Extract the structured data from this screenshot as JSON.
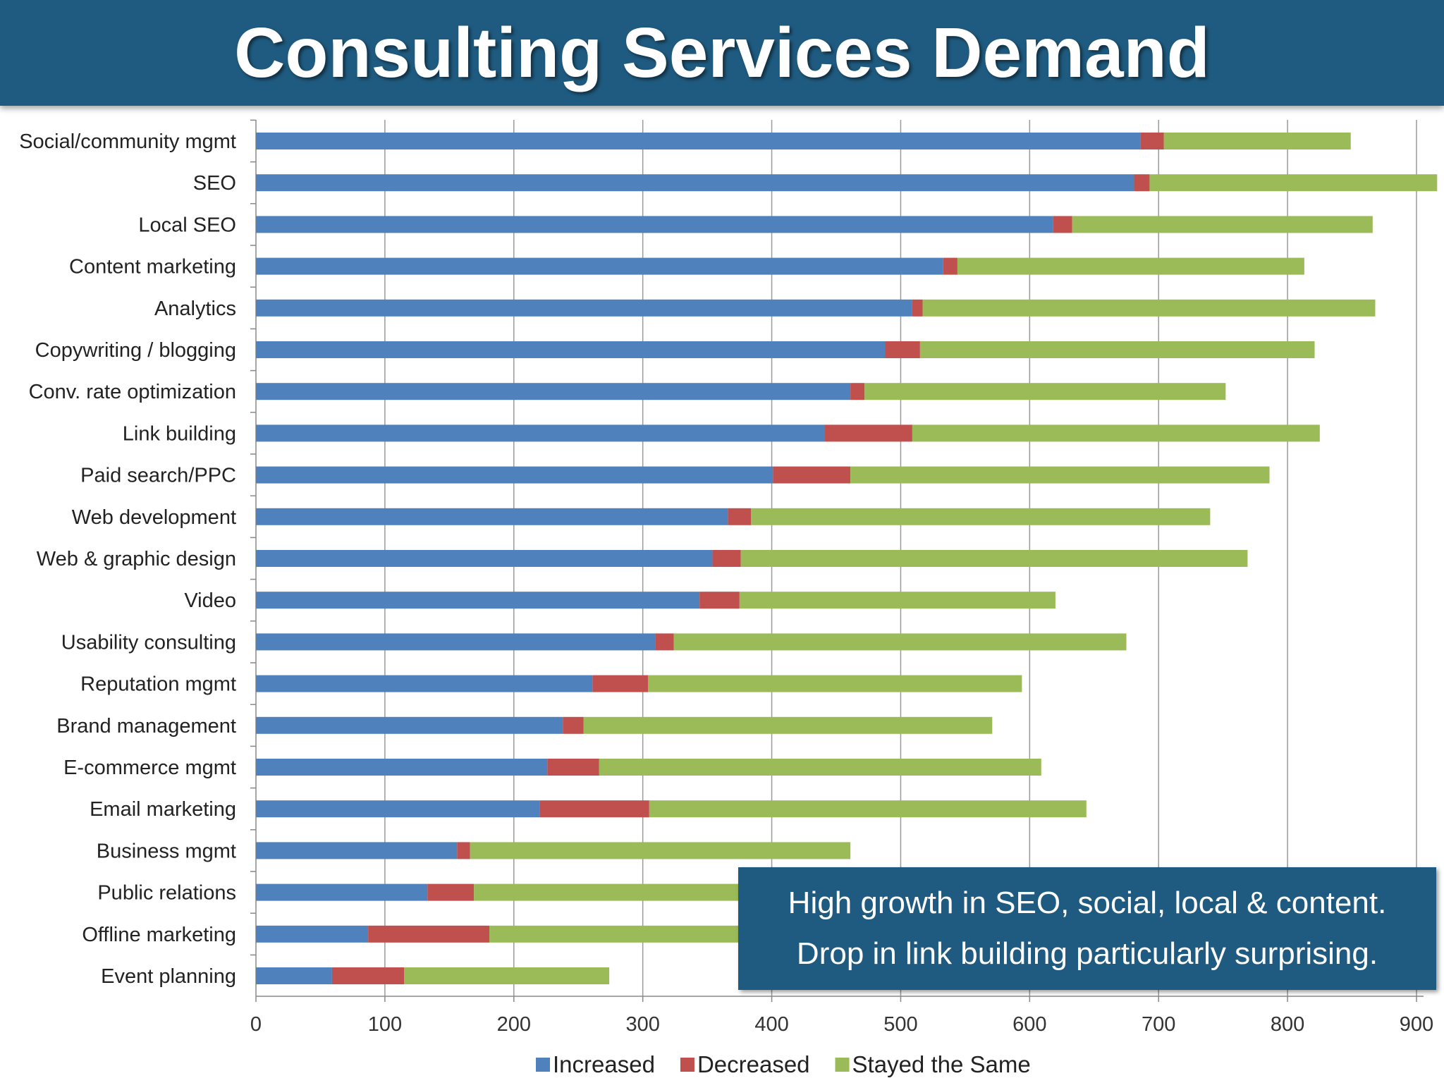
{
  "header": {
    "title": "Consulting Services Demand"
  },
  "callout": {
    "line1": "High growth in SEO, social, local & content.",
    "line2": "Drop in link building particularly surprising."
  },
  "chart_data": {
    "type": "bar",
    "orientation": "horizontal",
    "stacked": true,
    "title": "Consulting Services Demand",
    "xlabel": "",
    "ylabel": "",
    "xlim": [
      0,
      900
    ],
    "xticks": [
      0,
      100,
      200,
      300,
      400,
      500,
      600,
      700,
      800,
      900
    ],
    "grid": "vertical",
    "legend": "bottom",
    "categories": [
      "Social/community mgmt",
      "SEO",
      "Local SEO",
      "Content marketing",
      "Analytics",
      "Copywriting / blogging",
      "Conv. rate optimization",
      "Link building",
      "Paid search/PPC",
      "Web development",
      "Web & graphic design",
      "Video",
      "Usability consulting",
      "Reputation mgmt",
      "Brand management",
      "E-commerce mgmt",
      "Email marketing",
      "Business mgmt",
      "Public relations",
      "Offline marketing",
      "Event planning"
    ],
    "series": [
      {
        "name": "Increased",
        "color": "#4f81bd",
        "values": [
          686,
          681,
          618,
          533,
          509,
          488,
          461,
          441,
          401,
          366,
          354,
          344,
          310,
          261,
          238,
          226,
          220,
          156,
          133,
          87,
          59
        ]
      },
      {
        "name": "Decreased",
        "color": "#c0504d",
        "values": [
          18,
          12,
          15,
          11,
          8,
          27,
          11,
          68,
          60,
          18,
          22,
          31,
          14,
          43,
          16,
          40,
          85,
          10,
          36,
          94,
          56
        ]
      },
      {
        "name": "Stayed the Same",
        "color": "#9bbb59",
        "values": [
          145,
          223,
          233,
          269,
          351,
          306,
          280,
          316,
          325,
          356,
          393,
          245,
          351,
          290,
          317,
          343,
          339,
          295,
          330,
          310,
          159
        ]
      }
    ]
  }
}
